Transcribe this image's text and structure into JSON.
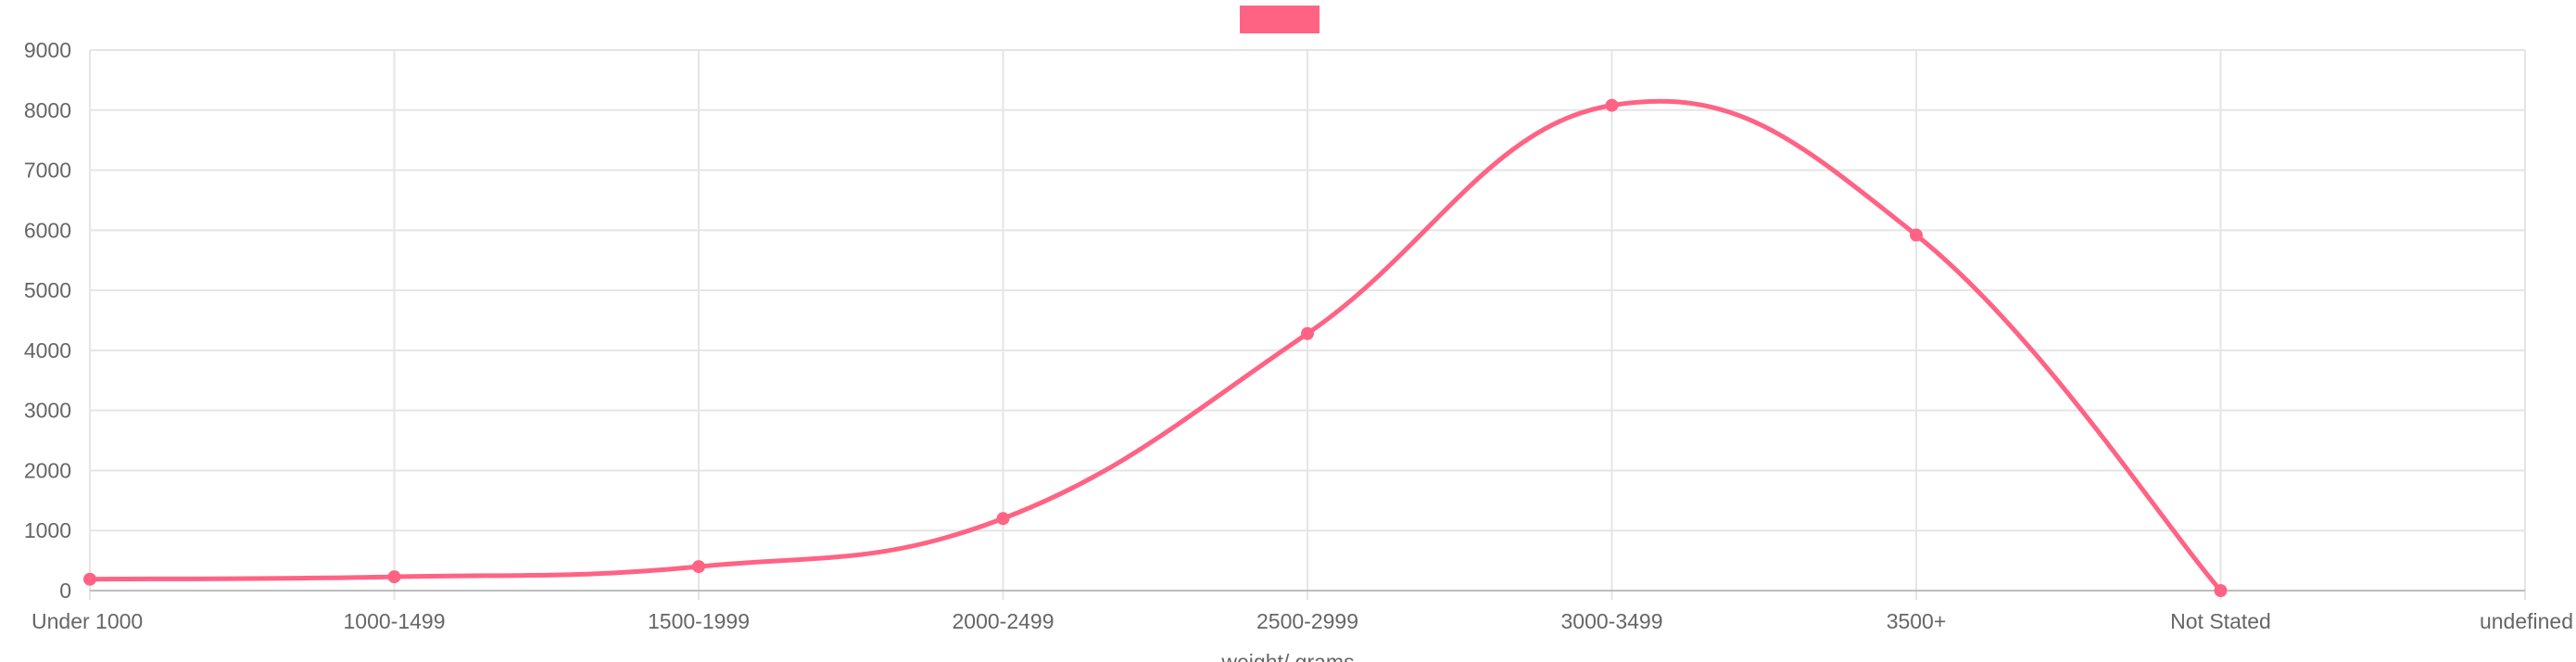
{
  "chart_data": {
    "type": "line",
    "title": "",
    "xlabel": "weight/ grams",
    "ylabel": "",
    "categories": [
      "Under 1000",
      "1000-1499",
      "1500-1999",
      "2000-2499",
      "2500-2999",
      "3000-3499",
      "3500+",
      "Not Stated",
      "undefined"
    ],
    "series": [
      {
        "name": "",
        "values": [
          190,
          230,
          400,
          1200,
          4280,
          8080,
          5920,
          0,
          null
        ]
      }
    ],
    "ylim": [
      0,
      9000
    ],
    "yticks": [
      "0",
      "1000",
      "2000",
      "3000",
      "4000",
      "5000",
      "6000",
      "7000",
      "8000",
      "9000"
    ],
    "grid": true,
    "legend": "top-center",
    "colors": {
      "series": "#ff6384",
      "grid": "#e5e5e5",
      "text": "#666666"
    }
  }
}
